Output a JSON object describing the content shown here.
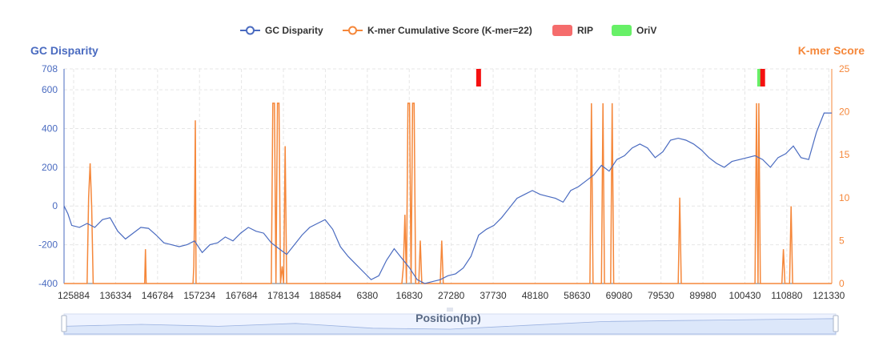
{
  "chart_data": {
    "type": "line",
    "legend": [
      {
        "name": "GC Disparity",
        "kind": "line",
        "color": "#4a6bc0"
      },
      {
        "name": "K-mer Cumulative Score (K-mer=22)",
        "kind": "line",
        "color": "#f5873a"
      },
      {
        "name": "RIP",
        "kind": "rect",
        "color": "#f56c6c"
      },
      {
        "name": "OriV",
        "kind": "rect",
        "color": "#67f067"
      }
    ],
    "legend_position": "top-center",
    "ylabel_left": "GC Disparity",
    "ylabel_right": "K-mer Score",
    "xlabel": "Position(bp)",
    "y_left_ticks": [
      "708",
      "600",
      "400",
      "200",
      "0",
      "-200",
      "-400"
    ],
    "y_left_range": [
      -400,
      708
    ],
    "y_right_ticks": [
      "25",
      "20",
      "15",
      "10",
      "5",
      "0"
    ],
    "y_right_range": [
      0,
      25
    ],
    "x_tick_labels": [
      "125884",
      "136334",
      "146784",
      "157234",
      "167684",
      "178134",
      "188584",
      "6380",
      "16830",
      "27280",
      "37730",
      "48180",
      "58630",
      "69080",
      "79530",
      "89980",
      "100430",
      "110880",
      "121330"
    ],
    "x_range": [
      0,
      1
    ],
    "grid": true,
    "gc_disparity_points": [
      [
        0.0,
        0
      ],
      [
        0.005,
        -40
      ],
      [
        0.01,
        -100
      ],
      [
        0.02,
        -110
      ],
      [
        0.03,
        -90
      ],
      [
        0.04,
        -110
      ],
      [
        0.05,
        -70
      ],
      [
        0.06,
        -60
      ],
      [
        0.07,
        -130
      ],
      [
        0.08,
        -170
      ],
      [
        0.09,
        -140
      ],
      [
        0.1,
        -110
      ],
      [
        0.11,
        -115
      ],
      [
        0.12,
        -150
      ],
      [
        0.13,
        -190
      ],
      [
        0.14,
        -200
      ],
      [
        0.15,
        -210
      ],
      [
        0.16,
        -200
      ],
      [
        0.17,
        -180
      ],
      [
        0.18,
        -240
      ],
      [
        0.19,
        -200
      ],
      [
        0.2,
        -190
      ],
      [
        0.21,
        -160
      ],
      [
        0.22,
        -180
      ],
      [
        0.23,
        -140
      ],
      [
        0.24,
        -110
      ],
      [
        0.25,
        -130
      ],
      [
        0.26,
        -140
      ],
      [
        0.27,
        -190
      ],
      [
        0.28,
        -220
      ],
      [
        0.29,
        -250
      ],
      [
        0.3,
        -200
      ],
      [
        0.31,
        -150
      ],
      [
        0.32,
        -110
      ],
      [
        0.33,
        -90
      ],
      [
        0.34,
        -70
      ],
      [
        0.35,
        -120
      ],
      [
        0.36,
        -210
      ],
      [
        0.37,
        -260
      ],
      [
        0.38,
        -300
      ],
      [
        0.39,
        -340
      ],
      [
        0.4,
        -380
      ],
      [
        0.41,
        -360
      ],
      [
        0.42,
        -280
      ],
      [
        0.43,
        -220
      ],
      [
        0.44,
        -270
      ],
      [
        0.45,
        -320
      ],
      [
        0.46,
        -380
      ],
      [
        0.47,
        -400
      ],
      [
        0.48,
        -390
      ],
      [
        0.49,
        -380
      ],
      [
        0.5,
        -360
      ],
      [
        0.51,
        -350
      ],
      [
        0.52,
        -320
      ],
      [
        0.53,
        -260
      ],
      [
        0.54,
        -150
      ],
      [
        0.55,
        -120
      ],
      [
        0.56,
        -100
      ],
      [
        0.57,
        -60
      ],
      [
        0.58,
        -10
      ],
      [
        0.59,
        40
      ],
      [
        0.6,
        60
      ],
      [
        0.61,
        80
      ],
      [
        0.62,
        60
      ],
      [
        0.63,
        50
      ],
      [
        0.64,
        40
      ],
      [
        0.65,
        20
      ],
      [
        0.66,
        80
      ],
      [
        0.67,
        100
      ],
      [
        0.68,
        130
      ],
      [
        0.69,
        160
      ],
      [
        0.7,
        210
      ],
      [
        0.71,
        180
      ],
      [
        0.72,
        240
      ],
      [
        0.73,
        260
      ],
      [
        0.74,
        300
      ],
      [
        0.75,
        320
      ],
      [
        0.76,
        300
      ],
      [
        0.77,
        250
      ],
      [
        0.78,
        280
      ],
      [
        0.79,
        340
      ],
      [
        0.8,
        350
      ],
      [
        0.81,
        340
      ],
      [
        0.82,
        320
      ],
      [
        0.83,
        290
      ],
      [
        0.84,
        250
      ],
      [
        0.85,
        220
      ],
      [
        0.86,
        200
      ],
      [
        0.87,
        230
      ],
      [
        0.88,
        240
      ],
      [
        0.89,
        250
      ],
      [
        0.9,
        260
      ],
      [
        0.91,
        240
      ],
      [
        0.92,
        200
      ],
      [
        0.93,
        250
      ],
      [
        0.94,
        270
      ],
      [
        0.95,
        310
      ],
      [
        0.96,
        250
      ],
      [
        0.97,
        240
      ],
      [
        0.98,
        380
      ],
      [
        0.99,
        480
      ],
      [
        1.0,
        480
      ]
    ],
    "kmer_points": [
      [
        0.0,
        0
      ],
      [
        0.03,
        0
      ],
      [
        0.032,
        10
      ],
      [
        0.034,
        14
      ],
      [
        0.036,
        9
      ],
      [
        0.038,
        0
      ],
      [
        0.105,
        0
      ],
      [
        0.106,
        4
      ],
      [
        0.107,
        0
      ],
      [
        0.168,
        0
      ],
      [
        0.169,
        2
      ],
      [
        0.17,
        8
      ],
      [
        0.171,
        19
      ],
      [
        0.172,
        0
      ],
      [
        0.27,
        0
      ],
      [
        0.272,
        21
      ],
      [
        0.274,
        21
      ],
      [
        0.276,
        0
      ],
      [
        0.278,
        21
      ],
      [
        0.28,
        21
      ],
      [
        0.282,
        0
      ],
      [
        0.284,
        2
      ],
      [
        0.286,
        0
      ],
      [
        0.288,
        16
      ],
      [
        0.29,
        0
      ],
      [
        0.44,
        0
      ],
      [
        0.442,
        2
      ],
      [
        0.444,
        8
      ],
      [
        0.446,
        0
      ],
      [
        0.448,
        21
      ],
      [
        0.45,
        21
      ],
      [
        0.452,
        0
      ],
      [
        0.454,
        21
      ],
      [
        0.456,
        21
      ],
      [
        0.458,
        0
      ],
      [
        0.462,
        0
      ],
      [
        0.464,
        5
      ],
      [
        0.466,
        0
      ],
      [
        0.49,
        0
      ],
      [
        0.492,
        5
      ],
      [
        0.494,
        0
      ],
      [
        0.685,
        0
      ],
      [
        0.687,
        21
      ],
      [
        0.689,
        0
      ],
      [
        0.7,
        0
      ],
      [
        0.702,
        21
      ],
      [
        0.704,
        0
      ],
      [
        0.712,
        0
      ],
      [
        0.714,
        21
      ],
      [
        0.716,
        0
      ],
      [
        0.8,
        0
      ],
      [
        0.802,
        10
      ],
      [
        0.804,
        0
      ],
      [
        0.9,
        0
      ],
      [
        0.902,
        21
      ],
      [
        0.904,
        0
      ],
      [
        0.905,
        21
      ],
      [
        0.907,
        0
      ],
      [
        0.935,
        0
      ],
      [
        0.937,
        4
      ],
      [
        0.939,
        0
      ],
      [
        0.945,
        0
      ],
      [
        0.947,
        9
      ],
      [
        0.949,
        0
      ],
      [
        1.0,
        0
      ]
    ],
    "rip_markers": [
      0.54,
      0.91
    ],
    "oriv_markers": [
      0.905
    ],
    "overview_points": [
      [
        0.0,
        0.6
      ],
      [
        0.1,
        0.5
      ],
      [
        0.2,
        0.6
      ],
      [
        0.3,
        0.45
      ],
      [
        0.4,
        0.7
      ],
      [
        0.5,
        0.75
      ],
      [
        0.6,
        0.55
      ],
      [
        0.7,
        0.35
      ],
      [
        0.8,
        0.3
      ],
      [
        0.9,
        0.25
      ],
      [
        1.0,
        0.2
      ]
    ]
  }
}
